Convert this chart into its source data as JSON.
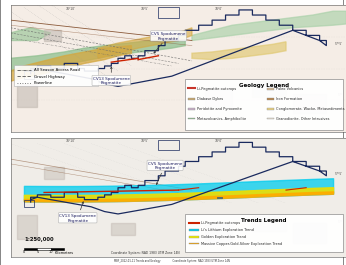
{
  "geology_legend_title": "Geology Legend",
  "geology_legend_items": [
    {
      "label": "Li-Pegmatite outcrops",
      "color": "#c8352a",
      "type": "line"
    },
    {
      "label": "Paleo Volcanics",
      "color": "#d4b896",
      "type": "patch"
    },
    {
      "label": "Diabase Dykes",
      "color": "#c8a870",
      "type": "patch"
    },
    {
      "label": "Iron Formation",
      "color": "#b8864e",
      "type": "patch"
    },
    {
      "label": "Peridotite and Pyroxenite",
      "color": "#c8b0c8",
      "type": "patch"
    },
    {
      "label": "Conglomerate, Wacke, Metasediments",
      "color": "#e8d080",
      "type": "patch"
    },
    {
      "label": "Metavolcanics, Amphibolite",
      "color": "#90c090",
      "type": "patch"
    },
    {
      "label": "Granodiorite, Other Intrusives",
      "color": "#f0e8d8",
      "type": "patch"
    }
  ],
  "map_legend_items": [
    {
      "label": "All Season Access Road",
      "style": "dashdot"
    },
    {
      "label": "Gravel Highway",
      "style": "dashed"
    },
    {
      "label": "Powerline",
      "style": "dotted"
    }
  ],
  "trends_legend_title": "Trends Legend",
  "trends_legend_items": [
    {
      "label": "Li-Pegmatite outcrops",
      "color": "#cc2200",
      "type": "line"
    },
    {
      "label": "Li's Lithium Exploration Trend",
      "color": "#00ccee",
      "type": "band"
    },
    {
      "label": "Golden Exploration Trend",
      "color": "#eeee00",
      "type": "band"
    },
    {
      "label": "Massive Copper-Gold-Silver Exploration Trend",
      "color": "#ffaa00",
      "type": "band"
    }
  ],
  "scale_text": "1:250,000",
  "coord_system": "Coordinate System: NAD 1983 UTM Zone 14N",
  "fig_bg": "#ffffff",
  "map_bg": "#f5f0ea",
  "border_color": "#1a2a5e"
}
